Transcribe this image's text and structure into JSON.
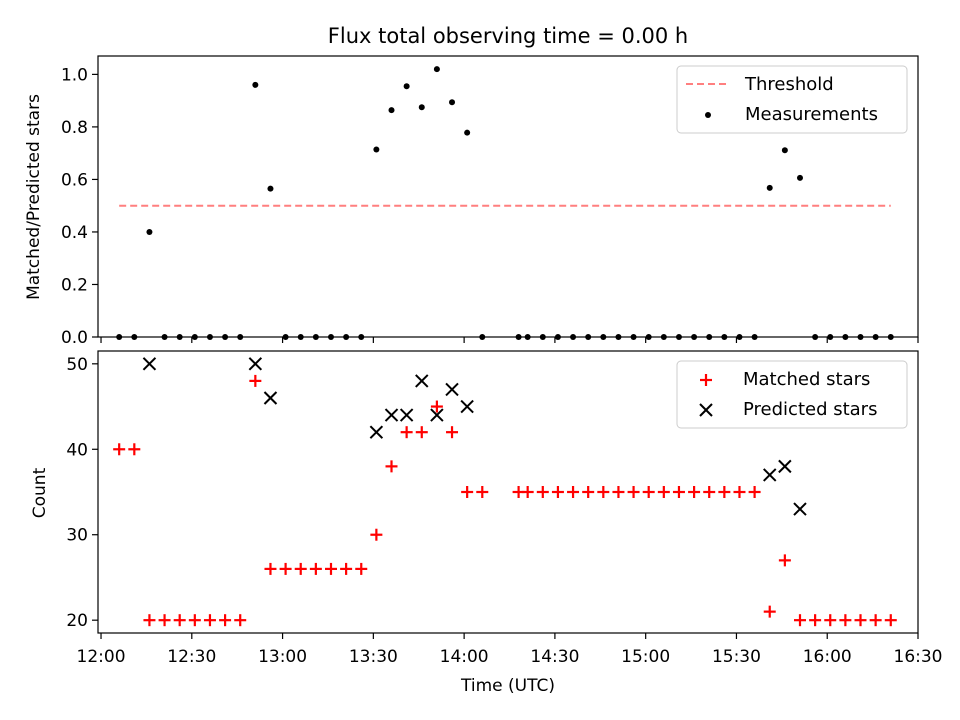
{
  "chart_data": [
    {
      "type": "scatter",
      "title": "Flux total observing time = 0.00 h",
      "xlabel": "",
      "ylabel": "Matched/Predicted stars",
      "ylim": [
        0,
        1.07
      ],
      "yticks": [
        0.0,
        0.2,
        0.4,
        0.6,
        0.8,
        1.0
      ],
      "ytick_labels": [
        "0.0",
        "0.2",
        "0.4",
        "0.6",
        "0.8",
        "1.0"
      ],
      "legend_position": "upper right",
      "series": [
        {
          "name": "Threshold",
          "kind": "dashed-line",
          "color": "#ff7f7f",
          "x": [
            "12:06",
            "16:21"
          ],
          "y": [
            0.5,
            0.5
          ]
        },
        {
          "name": "Measurements",
          "kind": "dot",
          "color": "#000000",
          "x": [
            "12:06",
            "12:11",
            "12:16",
            "12:21",
            "12:26",
            "12:31",
            "12:36",
            "12:41",
            "12:46",
            "12:51",
            "12:56",
            "13:01",
            "13:06",
            "13:11",
            "13:16",
            "13:21",
            "13:26",
            "13:31",
            "13:36",
            "13:41",
            "13:46",
            "13:51",
            "13:56",
            "14:01",
            "14:06",
            "14:18",
            "14:21",
            "14:26",
            "14:31",
            "14:36",
            "14:41",
            "14:46",
            "14:51",
            "14:56",
            "15:01",
            "15:06",
            "15:11",
            "15:16",
            "15:21",
            "15:26",
            "15:31",
            "15:36",
            "15:41",
            "15:46",
            "15:51",
            "15:56",
            "16:01",
            "16:06",
            "16:11",
            "16:16",
            "16:21"
          ],
          "y": [
            0,
            0,
            0.4,
            0,
            0,
            0,
            0,
            0,
            0,
            0.96,
            0.565,
            0,
            0,
            0,
            0,
            0,
            0,
            0.714,
            0.864,
            0.955,
            0.875,
            1.02,
            0.894,
            0.778,
            0,
            0,
            0,
            0,
            0,
            0,
            0,
            0,
            0,
            0,
            0,
            0,
            0,
            0,
            0,
            0,
            0,
            0,
            0.568,
            0.711,
            0.606,
            0,
            0,
            0,
            0,
            0,
            0
          ]
        }
      ]
    },
    {
      "type": "scatter",
      "title": "",
      "xlabel": "Time (UTC)",
      "ylabel": "Count",
      "ylim": [
        18.5,
        51.5
      ],
      "yticks": [
        20,
        30,
        40,
        50
      ],
      "ytick_labels": [
        "20",
        "30",
        "40",
        "50"
      ],
      "xticks": [
        "12:00",
        "12:30",
        "13:00",
        "13:30",
        "14:00",
        "14:30",
        "15:00",
        "15:30",
        "16:00",
        "16:30"
      ],
      "xlim": [
        "11:59",
        "16:30"
      ],
      "legend_position": "upper right",
      "series": [
        {
          "name": "Matched stars",
          "kind": "plus",
          "color": "#ff0000",
          "x": [
            "12:06",
            "12:11",
            "12:16",
            "12:21",
            "12:26",
            "12:31",
            "12:36",
            "12:41",
            "12:46",
            "12:51",
            "12:56",
            "13:01",
            "13:06",
            "13:11",
            "13:16",
            "13:21",
            "13:26",
            "13:31",
            "13:36",
            "13:41",
            "13:46",
            "13:51",
            "13:56",
            "14:01",
            "14:06",
            "14:18",
            "14:21",
            "14:26",
            "14:31",
            "14:36",
            "14:41",
            "14:46",
            "14:51",
            "14:56",
            "15:01",
            "15:06",
            "15:11",
            "15:16",
            "15:21",
            "15:26",
            "15:31",
            "15:36",
            "15:41",
            "15:46",
            "15:51",
            "15:56",
            "16:01",
            "16:06",
            "16:11",
            "16:16",
            "16:21"
          ],
          "y": [
            40,
            40,
            20,
            20,
            20,
            20,
            20,
            20,
            20,
            48,
            26,
            26,
            26,
            26,
            26,
            26,
            26,
            30,
            38,
            42,
            42,
            45,
            42,
            35,
            35,
            35,
            35,
            35,
            35,
            35,
            35,
            35,
            35,
            35,
            35,
            35,
            35,
            35,
            35,
            35,
            35,
            35,
            21,
            27,
            20,
            20,
            20,
            20,
            20,
            20,
            20
          ]
        },
        {
          "name": "Predicted stars",
          "kind": "x",
          "color": "#000000",
          "x": [
            "12:16",
            "12:51",
            "12:56",
            "13:31",
            "13:36",
            "13:41",
            "13:46",
            "13:51",
            "13:56",
            "14:01",
            "15:41",
            "15:46",
            "15:51"
          ],
          "y": [
            50,
            50,
            46,
            42,
            44,
            44,
            48,
            44,
            47,
            45,
            37,
            38,
            33
          ]
        }
      ]
    }
  ]
}
